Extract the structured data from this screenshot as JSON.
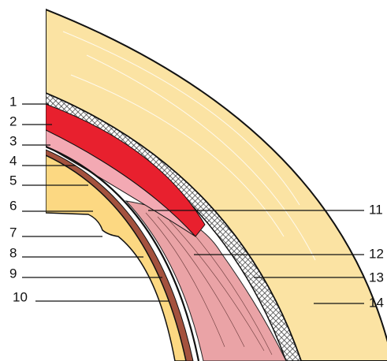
{
  "labels": [
    "1",
    "2",
    "3",
    "4",
    "5",
    "6",
    "7",
    "8",
    "9",
    "10",
    "11",
    "12",
    "13",
    "14"
  ]
}
